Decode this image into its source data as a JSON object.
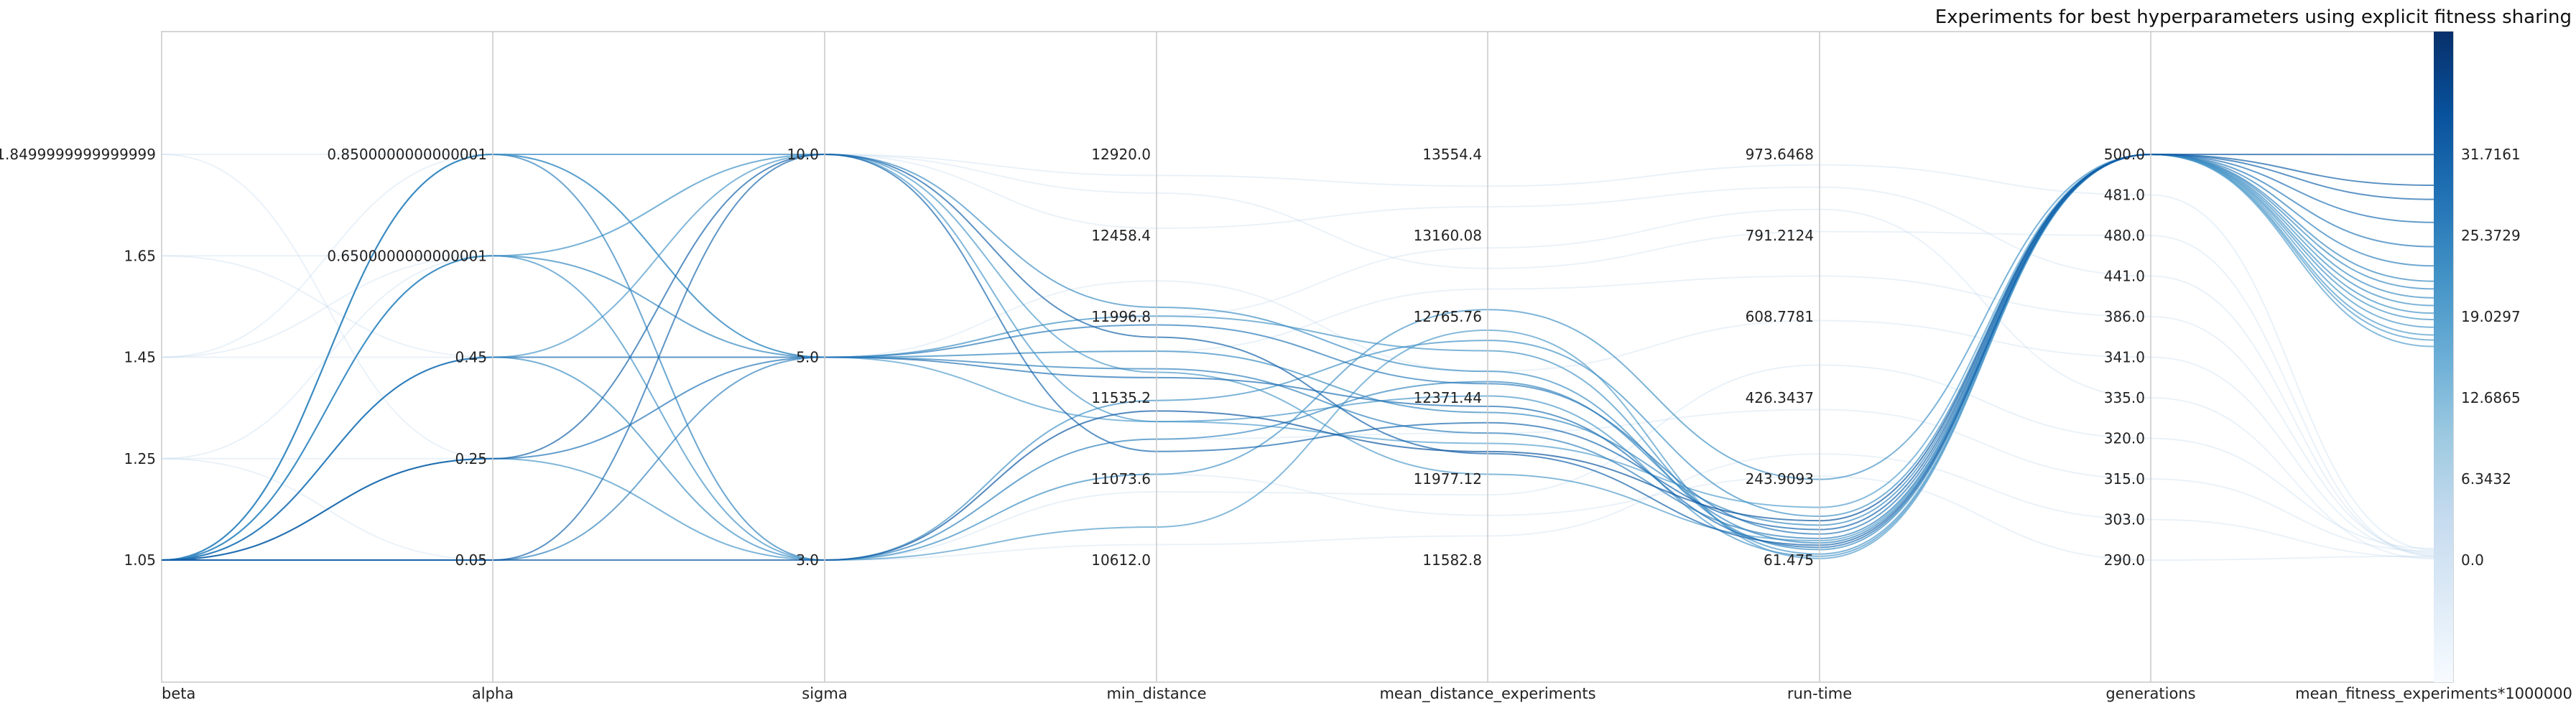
{
  "chart_data": {
    "type": "parallel-coordinates",
    "title": "Experiments for best hyperparameters using explicit fitness sharing",
    "axes": [
      {
        "name": "beta",
        "ticks": [
          "1.05",
          "1.25",
          "1.45",
          "1.65",
          "1.8499999999999999"
        ],
        "range": [
          1.05,
          1.85
        ]
      },
      {
        "name": "alpha",
        "ticks": [
          "0.05",
          "0.25",
          "0.45",
          "0.6500000000000001",
          "0.8500000000000001"
        ],
        "range": [
          0.05,
          0.85
        ]
      },
      {
        "name": "sigma",
        "ticks": [
          "3.0",
          "5.0",
          "10.0"
        ],
        "categorical": true
      },
      {
        "name": "min_distance",
        "ticks": [
          "10612.0",
          "11073.6",
          "11535.2",
          "11996.8",
          "12458.4",
          "12920.0"
        ],
        "range": [
          10612.0,
          12920.0
        ]
      },
      {
        "name": "mean_distance_experiments",
        "ticks": [
          "11582.8",
          "11977.12",
          "12371.44",
          "12765.76",
          "13160.08",
          "13554.4"
        ],
        "range": [
          11582.8,
          13554.4
        ]
      },
      {
        "name": "run-time",
        "ticks": [
          "61.475",
          "243.9093",
          "426.3437",
          "608.7781",
          "791.2124",
          "973.6468"
        ],
        "range": [
          61.475,
          973.6468
        ]
      },
      {
        "name": "generations",
        "ticks": [
          "290.0",
          "303.0",
          "315.0",
          "320.0",
          "335.0",
          "341.0",
          "386.0",
          "441.0",
          "480.0",
          "481.0",
          "500.0"
        ],
        "categorical": true
      },
      {
        "name": "mean_fitness_experiments*1000000",
        "ticks": [
          "0.0",
          "6.3432",
          "12.6865",
          "19.0297",
          "25.3729",
          "31.7161"
        ],
        "range": [
          0.0,
          31.7161
        ]
      }
    ],
    "colorbar": {
      "colormap": "Blues",
      "range": [
        0.0,
        39.6
      ]
    },
    "lines": [
      {
        "beta": 1.05,
        "alpha": 0.05,
        "sigma": "3.0",
        "min_distance": 11460,
        "mean_distance_experiments": 12110,
        "run-time": 150,
        "generations": "500.0",
        "mean_fitness": 31.7
      },
      {
        "beta": 1.05,
        "alpha": 0.25,
        "sigma": "10.0",
        "min_distance": 11880,
        "mean_distance_experiments": 12100,
        "run-time": 95,
        "generations": "500.0",
        "mean_fitness": 29.3
      },
      {
        "beta": 1.05,
        "alpha": 0.05,
        "sigma": "10.0",
        "min_distance": 11230,
        "mean_distance_experiments": 12250,
        "run-time": 130,
        "generations": "500.0",
        "mean_fitness": 28.2
      },
      {
        "beta": 1.05,
        "alpha": 0.45,
        "sigma": "5.0",
        "min_distance": 11650,
        "mean_distance_experiments": 12330,
        "run-time": 90,
        "generations": "500.0",
        "mean_fitness": 26.4
      },
      {
        "beta": 1.05,
        "alpha": 0.25,
        "sigma": "5.0",
        "min_distance": 11950,
        "mean_distance_experiments": 12440,
        "run-time": 120,
        "generations": "500.0",
        "mean_fitness": 24.5
      },
      {
        "beta": 1.05,
        "alpha": 0.05,
        "sigma": "5.0",
        "min_distance": 11700,
        "mean_distance_experiments": 12200,
        "run-time": 110,
        "generations": "500.0",
        "mean_fitness": 23.0
      },
      {
        "beta": 1.05,
        "alpha": 0.85,
        "sigma": "3.0",
        "min_distance": 11300,
        "mean_distance_experiments": 12450,
        "run-time": 100,
        "generations": "500.0",
        "mean_fitness": 21.8
      },
      {
        "beta": 1.05,
        "alpha": 0.65,
        "sigma": "5.0",
        "min_distance": 11800,
        "mean_distance_experiments": 12300,
        "run-time": 140,
        "generations": "500.0",
        "mean_fitness": 21.2
      },
      {
        "beta": 1.05,
        "alpha": 0.85,
        "sigma": "10.0",
        "min_distance": 12050,
        "mean_distance_experiments": 12500,
        "run-time": 85,
        "generations": "500.0",
        "mean_fitness": 20.5
      },
      {
        "beta": 1.05,
        "alpha": 0.65,
        "sigma": "3.0",
        "min_distance": 11520,
        "mean_distance_experiments": 12650,
        "run-time": 160,
        "generations": "500.0",
        "mean_fitness": 19.9
      },
      {
        "beta": 1.05,
        "alpha": 0.45,
        "sigma": "3.0",
        "min_distance": 11100,
        "mean_distance_experiments": 12800,
        "run-time": 243,
        "generations": "500.0",
        "mean_fitness": 19.3
      },
      {
        "beta": 1.05,
        "alpha": 0.85,
        "sigma": "5.0",
        "min_distance": 12000,
        "mean_distance_experiments": 12600,
        "run-time": 75,
        "generations": "500.0",
        "mean_fitness": 18.8
      },
      {
        "beta": 1.05,
        "alpha": 0.45,
        "sigma": "10.0",
        "min_distance": 11400,
        "mean_distance_experiments": 12380,
        "run-time": 70,
        "generations": "500.0",
        "mean_fitness": 18.2
      },
      {
        "beta": 1.05,
        "alpha": 0.65,
        "sigma": "10.0",
        "min_distance": 11680,
        "mean_distance_experiments": 12000,
        "run-time": 105,
        "generations": "500.0",
        "mean_fitness": 17.6
      },
      {
        "beta": 1.05,
        "alpha": 0.25,
        "sigma": "3.0",
        "min_distance": 10800,
        "mean_distance_experiments": 12700,
        "run-time": 65,
        "generations": "500.0",
        "mean_fitness": 17.2
      },
      {
        "beta": 1.05,
        "alpha": 0.85,
        "sigma": "5.0",
        "min_distance": 11400,
        "mean_distance_experiments": 12150,
        "run-time": 180,
        "generations": "500.0",
        "mean_fitness": 16.7
      },
      {
        "beta": 1.25,
        "alpha": 0.25,
        "sigma": "3.0",
        "min_distance": 11000,
        "mean_distance_experiments": 11900,
        "run-time": 500,
        "generations": "320.0",
        "mean_fitness": 0.9
      },
      {
        "beta": 1.45,
        "alpha": 0.45,
        "sigma": "5.0",
        "min_distance": 11800,
        "mean_distance_experiments": 12900,
        "run-time": 700,
        "generations": "386.0",
        "mean_fitness": 0.6
      },
      {
        "beta": 1.65,
        "alpha": 0.65,
        "sigma": "10.0",
        "min_distance": 12500,
        "mean_distance_experiments": 13300,
        "run-time": 900,
        "generations": "441.0",
        "mean_fitness": 0.4
      },
      {
        "beta": 1.85,
        "alpha": 0.85,
        "sigma": "10.0",
        "min_distance": 12700,
        "mean_distance_experiments": 13000,
        "run-time": 800,
        "generations": "480.0",
        "mean_fitness": 0.3
      },
      {
        "beta": 1.25,
        "alpha": 0.05,
        "sigma": "3.0",
        "min_distance": 10700,
        "mean_distance_experiments": 11700,
        "run-time": 300,
        "generations": "303.0",
        "mean_fitness": 0.2
      },
      {
        "beta": 1.45,
        "alpha": 0.65,
        "sigma": "5.0",
        "min_distance": 12200,
        "mean_distance_experiments": 12500,
        "run-time": 600,
        "generations": "341.0",
        "mean_fitness": 0.5
      },
      {
        "beta": 1.65,
        "alpha": 0.45,
        "sigma": "3.0",
        "min_distance": 11300,
        "mean_distance_experiments": 12200,
        "run-time": 400,
        "generations": "315.0",
        "mean_fitness": 0.7
      },
      {
        "beta": 1.85,
        "alpha": 0.25,
        "sigma": "5.0",
        "min_distance": 12000,
        "mean_distance_experiments": 13100,
        "run-time": 850,
        "generations": "335.0",
        "mean_fitness": 0.1
      },
      {
        "beta": 1.25,
        "alpha": 0.65,
        "sigma": "10.0",
        "min_distance": 12800,
        "mean_distance_experiments": 13400,
        "run-time": 950,
        "generations": "481.0",
        "mean_fitness": 0.8
      },
      {
        "beta": 1.45,
        "alpha": 0.85,
        "sigma": "3.0",
        "min_distance": 11100,
        "mean_distance_experiments": 11800,
        "run-time": 250,
        "generations": "290.0",
        "mean_fitness": 0.3
      }
    ]
  }
}
